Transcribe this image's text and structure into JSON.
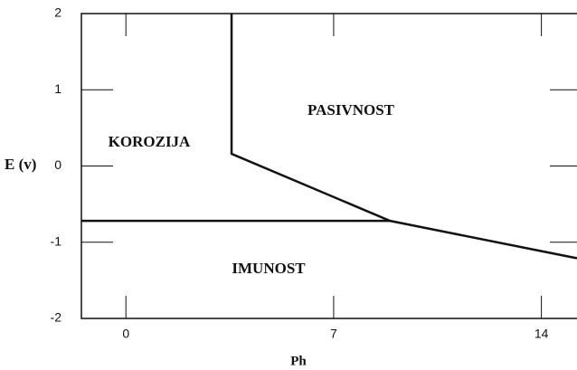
{
  "chart_data": {
    "type": "line",
    "xlabel": "Ph",
    "ylabel": "E (v)",
    "xlim": [
      -1.5,
      15.2
    ],
    "xticks": [
      0,
      7,
      14
    ],
    "ylim": [
      -2,
      2
    ],
    "yticks": [
      -2,
      -1,
      0,
      1,
      2
    ],
    "series": [
      {
        "color": "#111111",
        "x": [
          3.56,
          3.56,
          8.9,
          15.2
        ],
        "values": [
          2,
          0.16,
          -0.72,
          -1.21
        ]
      },
      {
        "color": "#111111",
        "x": [
          -1.5,
          8.9
        ],
        "values": [
          -0.72,
          -0.72
        ]
      }
    ],
    "annotations": [
      "KOROZIJA",
      "PASIVNOST",
      "IMUNOST"
    ]
  }
}
